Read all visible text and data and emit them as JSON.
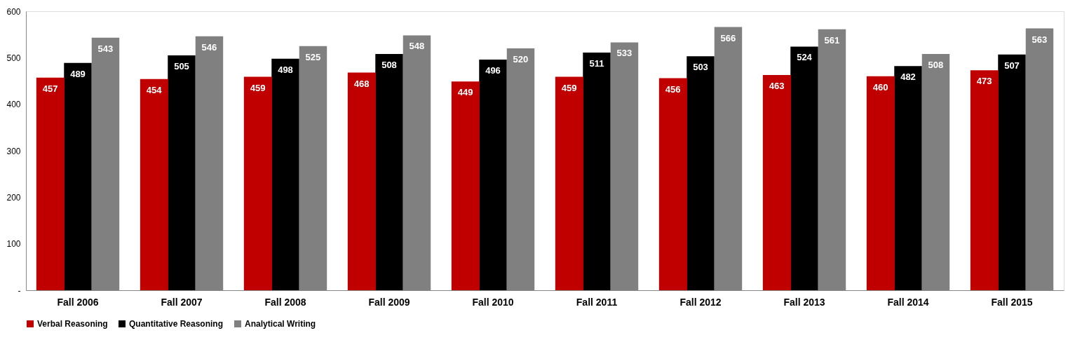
{
  "chart_data": {
    "type": "bar",
    "categories": [
      "Fall 2006",
      "Fall 2007",
      "Fall 2008",
      "Fall 2009",
      "Fall 2010",
      "Fall 2011",
      "Fall 2012",
      "Fall 2013",
      "Fall 2014",
      "Fall 2015"
    ],
    "series": [
      {
        "name": "Verbal Reasoning",
        "color": "#c00000",
        "values": [
          457,
          454,
          459,
          468,
          449,
          459,
          456,
          463,
          460,
          473
        ]
      },
      {
        "name": "Quantitative Reasoning",
        "color": "#000000",
        "values": [
          489,
          505,
          498,
          508,
          496,
          511,
          503,
          524,
          482,
          507
        ]
      },
      {
        "name": "Analytical Writing",
        "color": "#808080",
        "values": [
          543,
          546,
          525,
          548,
          520,
          533,
          566,
          561,
          508,
          563
        ]
      }
    ],
    "ylim": [
      0,
      600
    ],
    "yticks": [
      {
        "value": 0,
        "label": "-"
      },
      100,
      200,
      300,
      400,
      500,
      600
    ],
    "grid": false,
    "legend": "bottom",
    "data_labels": true
  }
}
